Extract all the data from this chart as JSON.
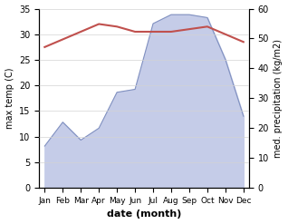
{
  "months": [
    "Jan",
    "Feb",
    "Mar",
    "Apr",
    "May",
    "Jun",
    "Jul",
    "Aug",
    "Sep",
    "Oct",
    "Nov",
    "Dec"
  ],
  "max_temp": [
    27.5,
    29.0,
    30.5,
    32.0,
    31.5,
    30.5,
    30.5,
    30.5,
    31.0,
    31.5,
    30.0,
    28.5
  ],
  "precipitation": [
    14,
    22,
    16,
    20,
    32,
    33,
    55,
    58,
    58,
    57,
    43,
    24
  ],
  "temp_color": "#c0504d",
  "precip_fill_color": "#c5cce8",
  "precip_line_color": "#8090c0",
  "background_color": "#ffffff",
  "xlabel": "date (month)",
  "ylabel_left": "max temp (C)",
  "ylabel_right": "med. precipitation (kg/m2)",
  "ylim_left": [
    0,
    35
  ],
  "ylim_right": [
    0,
    60
  ],
  "yticks_left": [
    0,
    5,
    10,
    15,
    20,
    25,
    30,
    35
  ],
  "yticks_right": [
    0,
    10,
    20,
    30,
    40,
    50,
    60
  ],
  "figsize": [
    3.18,
    2.47
  ],
  "dpi": 100
}
